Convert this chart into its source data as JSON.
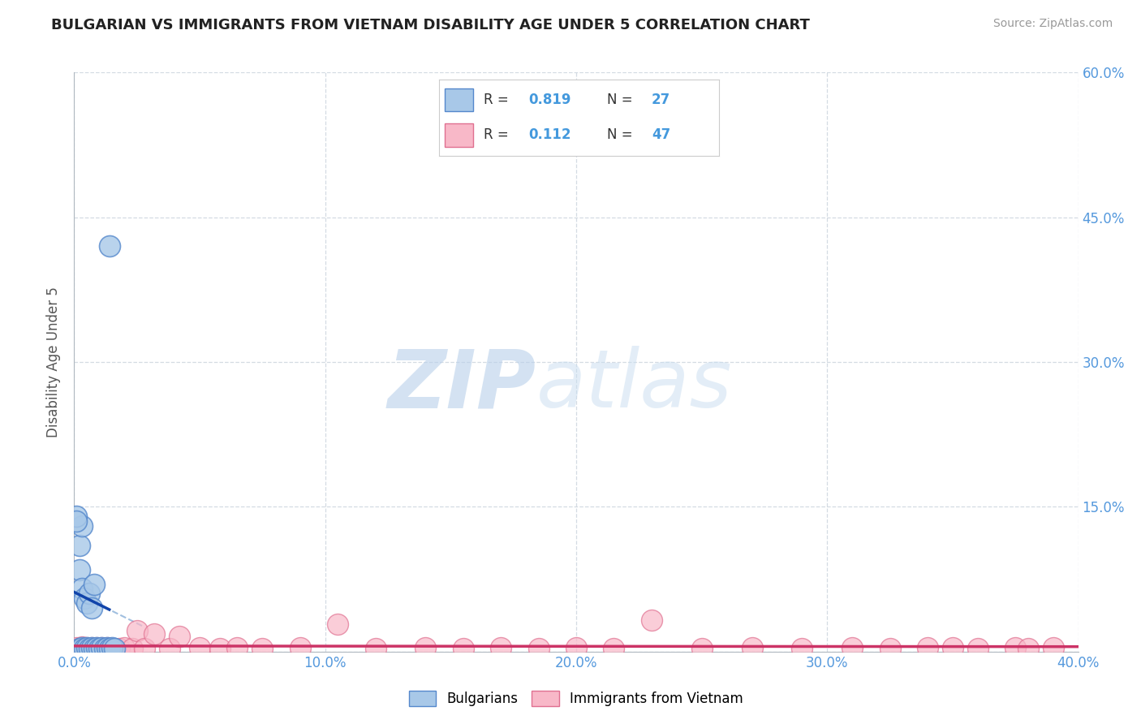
{
  "title": "BULGARIAN VS IMMIGRANTS FROM VIETNAM DISABILITY AGE UNDER 5 CORRELATION CHART",
  "source": "Source: ZipAtlas.com",
  "ylabel": "Disability Age Under 5",
  "bg_color": "#ffffff",
  "plot_bg_color": "#ffffff",
  "grid_color": "#d0d8e0",
  "axis_label_color": "#5599dd",
  "right_ytick_color": "#5599dd",
  "xlim": [
    0.0,
    0.4
  ],
  "ylim": [
    0.0,
    0.6
  ],
  "xticks": [
    0.0,
    0.1,
    0.2,
    0.3,
    0.4
  ],
  "yticks": [
    0.0,
    0.15,
    0.3,
    0.45,
    0.6
  ],
  "ytick_labels": [
    "",
    "15.0%",
    "30.0%",
    "45.0%",
    "60.0%"
  ],
  "xtick_labels": [
    "0.0%",
    "10.0%",
    "20.0%",
    "30.0%",
    "40.0%"
  ],
  "bulgarians_color": "#a8c8e8",
  "bulgarians_edge_color": "#5588cc",
  "vietnam_color": "#f8b8c8",
  "vietnam_edge_color": "#e07090",
  "trend_blue_color": "#1144aa",
  "trend_pink_color": "#cc3366",
  "R_blue": 0.819,
  "N_blue": 27,
  "R_pink": 0.112,
  "N_pink": 47,
  "bulgarians_x": [
    0.002,
    0.003,
    0.004,
    0.005,
    0.006,
    0.007,
    0.008,
    0.009,
    0.01,
    0.011,
    0.012,
    0.013,
    0.014,
    0.015,
    0.016,
    0.002,
    0.003,
    0.004,
    0.005,
    0.006,
    0.007,
    0.008,
    0.002,
    0.003,
    0.001,
    0.001,
    0.014
  ],
  "bulgarians_y": [
    0.003,
    0.004,
    0.003,
    0.004,
    0.003,
    0.004,
    0.003,
    0.004,
    0.003,
    0.004,
    0.003,
    0.004,
    0.003,
    0.004,
    0.003,
    0.085,
    0.065,
    0.055,
    0.05,
    0.06,
    0.045,
    0.07,
    0.11,
    0.13,
    0.14,
    0.135,
    0.42
  ],
  "vietnam_x": [
    0.001,
    0.002,
    0.003,
    0.004,
    0.005,
    0.006,
    0.007,
    0.008,
    0.009,
    0.01,
    0.011,
    0.012,
    0.013,
    0.015,
    0.018,
    0.02,
    0.023,
    0.025,
    0.028,
    0.032,
    0.038,
    0.042,
    0.05,
    0.058,
    0.065,
    0.075,
    0.09,
    0.105,
    0.12,
    0.14,
    0.155,
    0.17,
    0.185,
    0.2,
    0.215,
    0.23,
    0.25,
    0.27,
    0.29,
    0.31,
    0.325,
    0.34,
    0.35,
    0.36,
    0.375,
    0.38,
    0.39
  ],
  "vietnam_y": [
    0.004,
    0.003,
    0.005,
    0.003,
    0.004,
    0.003,
    0.004,
    0.003,
    0.004,
    0.003,
    0.004,
    0.003,
    0.004,
    0.003,
    0.003,
    0.004,
    0.003,
    0.022,
    0.003,
    0.018,
    0.003,
    0.016,
    0.004,
    0.003,
    0.004,
    0.003,
    0.004,
    0.028,
    0.003,
    0.004,
    0.003,
    0.004,
    0.003,
    0.004,
    0.003,
    0.033,
    0.003,
    0.004,
    0.003,
    0.004,
    0.003,
    0.004,
    0.004,
    0.003,
    0.004,
    0.003,
    0.004
  ]
}
